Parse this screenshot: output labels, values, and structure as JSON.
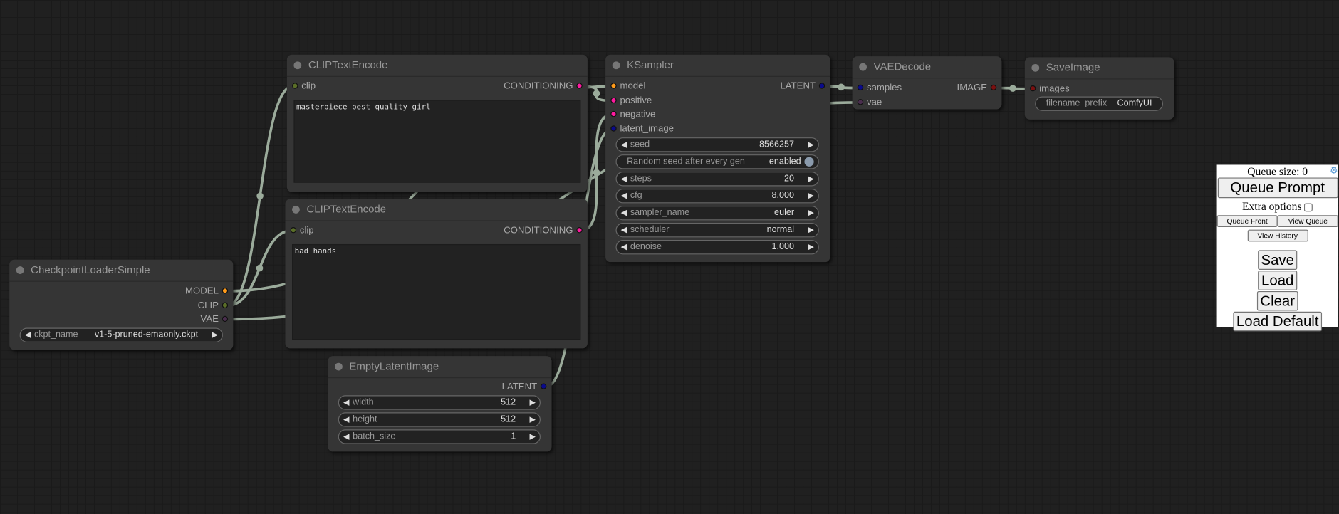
{
  "colors": {
    "link": "#9bab9b",
    "MODEL": "#ff9b1a",
    "CLIP": "#5a6e28",
    "VAE": "#4a2e4e",
    "CONDITIONING": "#ff1aa0",
    "LATENT": "#0a0a8c",
    "IMAGE": "#7a1010"
  },
  "nodes": {
    "clip_pos": {
      "title": "CLIPTextEncode",
      "inputs": [
        "clip"
      ],
      "outputs": [
        "CONDITIONING"
      ],
      "text": "masterpiece best quality girl"
    },
    "clip_neg": {
      "title": "CLIPTextEncode",
      "inputs": [
        "clip"
      ],
      "outputs": [
        "CONDITIONING"
      ],
      "text": "bad hands"
    },
    "ckpt": {
      "title": "CheckpointLoaderSimple",
      "outputs": [
        "MODEL",
        "CLIP",
        "VAE"
      ],
      "widgets": [
        {
          "name": "ckpt_name",
          "value": "v1-5-pruned-emaonly.ckpt"
        }
      ]
    },
    "latent": {
      "title": "EmptyLatentImage",
      "outputs": [
        "LATENT"
      ],
      "widgets": [
        {
          "name": "width",
          "value": "512"
        },
        {
          "name": "height",
          "value": "512"
        },
        {
          "name": "batch_size",
          "value": "1"
        }
      ]
    },
    "ksampler": {
      "title": "KSampler",
      "inputs": [
        "model",
        "positive",
        "negative",
        "latent_image"
      ],
      "outputs": [
        "LATENT"
      ],
      "widgets": [
        {
          "name": "seed",
          "value": "8566257"
        },
        {
          "name": "Random seed after every gen",
          "value": "enabled",
          "toggle": true
        },
        {
          "name": "steps",
          "value": "20"
        },
        {
          "name": "cfg",
          "value": "8.000"
        },
        {
          "name": "sampler_name",
          "value": "euler"
        },
        {
          "name": "scheduler",
          "value": "normal"
        },
        {
          "name": "denoise",
          "value": "1.000"
        }
      ]
    },
    "vaedecode": {
      "title": "VAEDecode",
      "inputs": [
        "samples",
        "vae"
      ],
      "outputs": [
        "IMAGE"
      ]
    },
    "save": {
      "title": "SaveImage",
      "inputs": [
        "images"
      ],
      "widgets": [
        {
          "name": "filename_prefix",
          "value": "ComfyUI",
          "text": true
        }
      ]
    }
  },
  "panel": {
    "queue_size": "Queue size: 0",
    "queue_prompt": "Queue Prompt",
    "extra_options": "Extra options",
    "queue_front": "Queue Front",
    "view_queue": "View Queue",
    "view_history": "View History",
    "save": "Save",
    "load": "Load",
    "clear": "Clear",
    "load_default": "Load Default"
  }
}
